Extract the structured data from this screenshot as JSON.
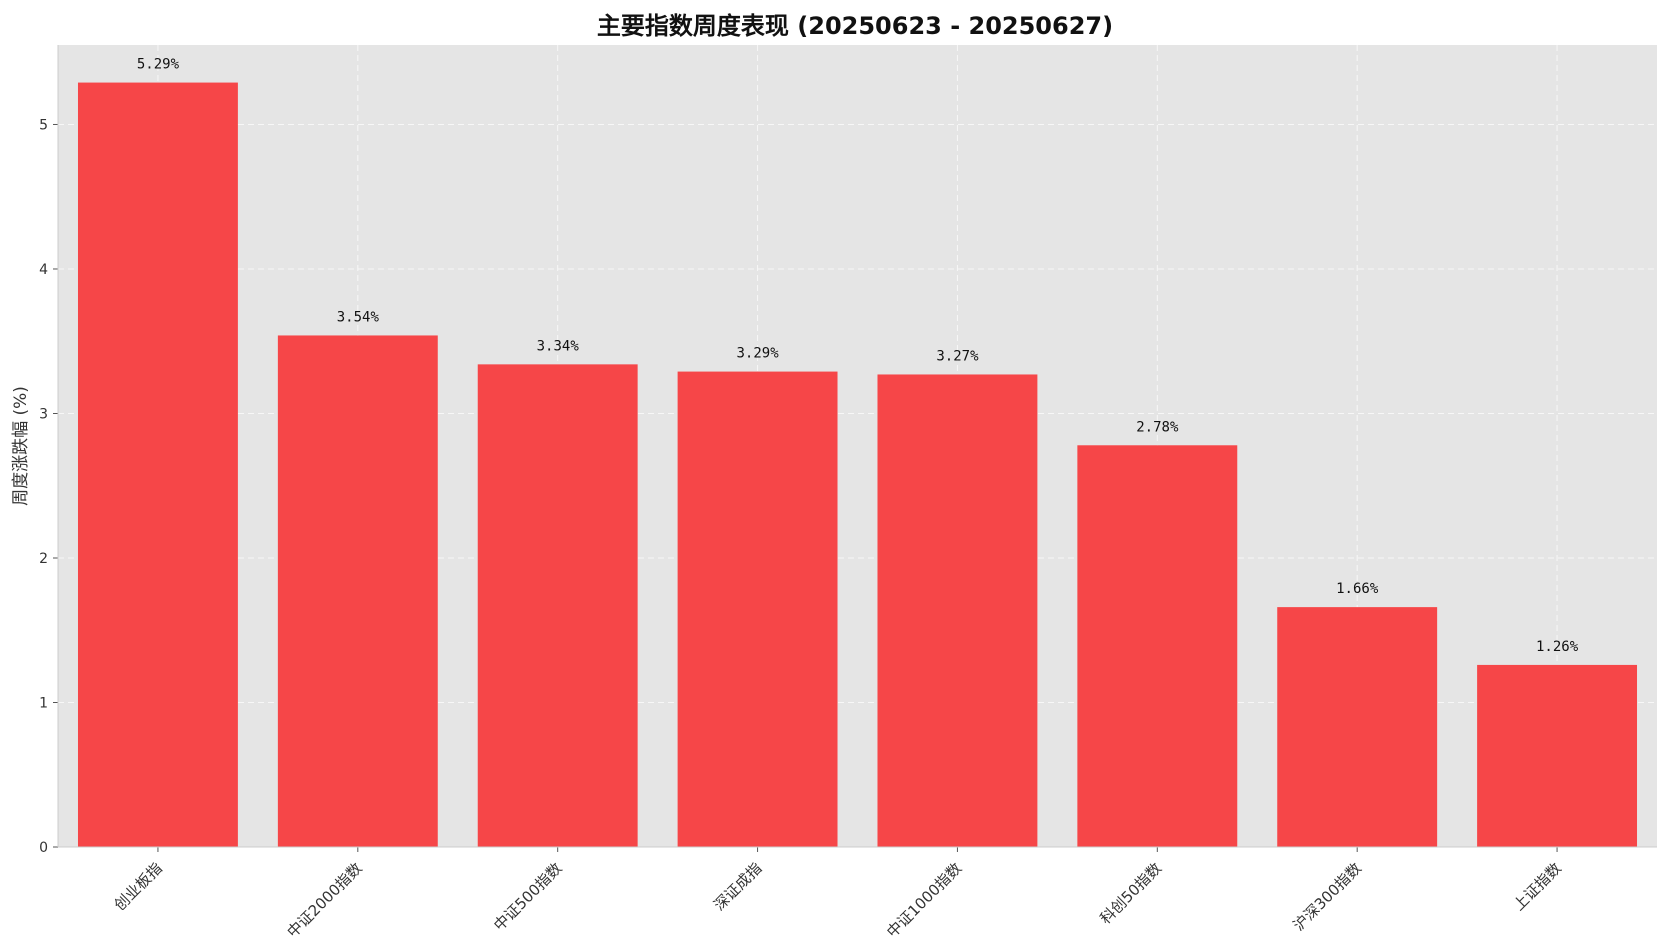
{
  "chart_data": {
    "type": "bar",
    "title": "主要指数周度表现 (20250623 - 20250627)",
    "xlabel": "",
    "ylabel": "周度涨跌幅 (%)",
    "categories": [
      "创业板指",
      "中证2000指数",
      "中证500指数",
      "深证成指",
      "中证1000指数",
      "科创50指数",
      "沪深300指数",
      "上证指数"
    ],
    "values": [
      5.29,
      3.54,
      3.34,
      3.29,
      3.27,
      2.78,
      1.66,
      1.26
    ],
    "data_labels": [
      "5.29%",
      "3.54%",
      "3.34%",
      "3.29%",
      "3.27%",
      "2.78%",
      "1.66%",
      "1.26%"
    ],
    "yticks": [
      0,
      1,
      2,
      3,
      4,
      5
    ],
    "ylim": [
      0,
      5.55
    ],
    "grid": true,
    "legend": false,
    "bar_color": "#f64648",
    "plot_background": "#e5e5e5"
  }
}
